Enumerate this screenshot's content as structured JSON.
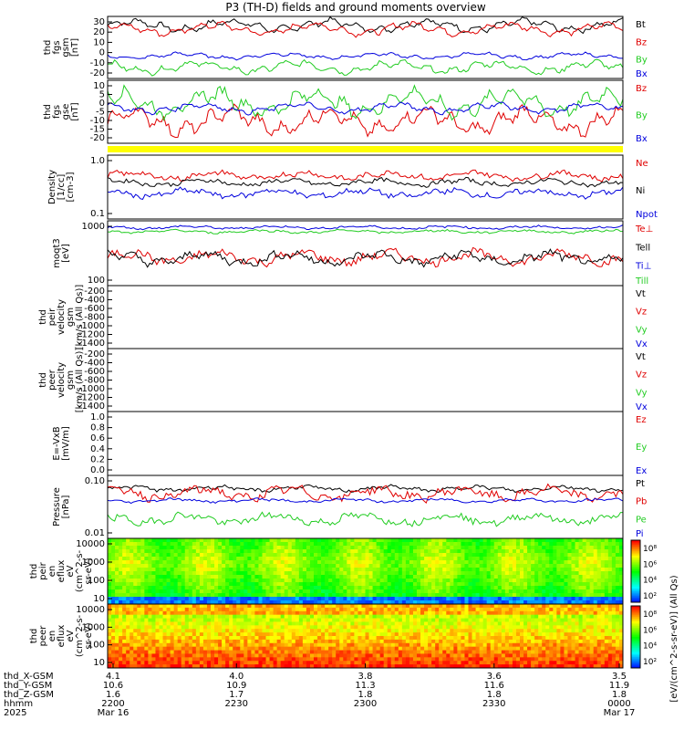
{
  "title": "P3 (TH-D) fields and ground moments overview",
  "colors": {
    "black": "#000000",
    "red": "#e00000",
    "green": "#22cc22",
    "blue": "#0000dd",
    "yellow": "#ffff00"
  },
  "chart_data": [
    {
      "type": "line",
      "id": "fgs_gsm",
      "ylabel": [
        "thd",
        "fgs",
        "gsm",
        "[nT]"
      ],
      "ylim": [
        -20,
        35
      ],
      "yticks": [
        "30",
        "20",
        "10",
        "0",
        "-10",
        "-20"
      ],
      "series": [
        {
          "name": "Bt",
          "color": "black",
          "base": 27,
          "amp": 6
        },
        {
          "name": "Bz",
          "color": "red",
          "base": 24,
          "amp": 6
        },
        {
          "name": "By",
          "color": "green",
          "base": -10,
          "amp": 6
        },
        {
          "name": "Bx",
          "color": "blue",
          "base": 0,
          "amp": 3
        }
      ]
    },
    {
      "type": "line",
      "id": "fgs_gse",
      "ylabel": [
        "thd",
        "fgs",
        "gse",
        "[nT]"
      ],
      "ylim": [
        -22,
        12
      ],
      "yticks": [
        "10",
        "5",
        "0",
        "-5",
        "-10",
        "-15",
        "-20"
      ],
      "series": [
        {
          "name": "Bz",
          "color": "red",
          "base": -10,
          "amp": 8
        },
        {
          "name": "By",
          "color": "green",
          "base": 0,
          "amp": 8
        },
        {
          "name": "Bx",
          "color": "blue",
          "base": -3,
          "amp": 3
        }
      ]
    },
    {
      "type": "line",
      "id": "density",
      "ylabel": [
        "Density",
        "[1/cc]",
        "[cm-3]"
      ],
      "log": true,
      "ylim": [
        0.02,
        3
      ],
      "yticks": [
        "1.0",
        "0.1"
      ],
      "series": [
        {
          "name": "Ne",
          "color": "red",
          "base": 0.6,
          "amp": 0.25
        },
        {
          "name": "Ni",
          "color": "black",
          "base": 0.35,
          "amp": 0.2
        },
        {
          "name": "Npot",
          "color": "blue",
          "base": 0.15,
          "amp": 0.25
        }
      ]
    },
    {
      "type": "line",
      "id": "temps",
      "ylabel": [
        "moqt3",
        "[eV]"
      ],
      "log": true,
      "ylim": [
        30,
        6000
      ],
      "yticks": [
        "1000",
        "100"
      ],
      "series": [
        {
          "name": "Te⊥",
          "color": "red",
          "base": 300,
          "amp": 0.4
        },
        {
          "name": "Tell",
          "color": "black",
          "base": 280,
          "amp": 0.4
        },
        {
          "name": "Ti⊥",
          "color": "blue",
          "base": 3500,
          "amp": 0.1
        },
        {
          "name": "Till",
          "color": "green",
          "base": 2500,
          "amp": 0.1
        }
      ]
    },
    {
      "type": "line",
      "id": "peir_vel",
      "ylabel": [
        "thd",
        "peir",
        "velocity",
        "gsm",
        "[km/s (All Qs)]"
      ],
      "ylim": [
        -1400,
        0
      ],
      "yticks": [
        "-200",
        "-400",
        "-600",
        "-800",
        "-1000",
        "-1200",
        "-1400"
      ],
      "series": [
        {
          "name": "Vt",
          "color": "black"
        },
        {
          "name": "Vz",
          "color": "red"
        },
        {
          "name": "Vy",
          "color": "green"
        },
        {
          "name": "Vx",
          "color": "blue"
        }
      ]
    },
    {
      "type": "line",
      "id": "peer_vel",
      "ylabel": [
        "thd",
        "peer",
        "velocity",
        "gsm",
        "[km/s (All Qs)]"
      ],
      "ylim": [
        -1400,
        0
      ],
      "yticks": [
        "-200",
        "-400",
        "-600",
        "-800",
        "-1000",
        "-1200",
        "-1400"
      ],
      "series": [
        {
          "name": "Vt",
          "color": "black"
        },
        {
          "name": "Vz",
          "color": "red"
        },
        {
          "name": "Vy",
          "color": "green"
        },
        {
          "name": "Vx",
          "color": "blue"
        }
      ]
    },
    {
      "type": "line",
      "id": "efield",
      "ylabel": [
        "E=-VxB",
        "[mV/m]"
      ],
      "ylim": [
        0,
        1
      ],
      "yticks": [
        "1.0",
        "0.8",
        "0.6",
        "0.4",
        "0.2",
        "0.0"
      ],
      "series": [
        {
          "name": "Ez",
          "color": "red"
        },
        {
          "name": "Ey",
          "color": "green"
        },
        {
          "name": "Ex",
          "color": "blue"
        }
      ]
    },
    {
      "type": "line",
      "id": "pressure",
      "ylabel": [
        "Pressure",
        "[nPa]"
      ],
      "log": true,
      "ylim": [
        0.01,
        0.9
      ],
      "yticks": [
        "0.10",
        "0.01"
      ],
      "series": [
        {
          "name": "Pt",
          "color": "black",
          "base": 0.35,
          "amp": 0.15
        },
        {
          "name": "Pb",
          "color": "red",
          "base": 0.25,
          "amp": 0.35
        },
        {
          "name": "Pe",
          "color": "green",
          "base": 0.04,
          "amp": 0.3
        },
        {
          "name": "Pi",
          "color": "blue",
          "base": 0.15,
          "amp": 0.1
        }
      ]
    },
    {
      "type": "heatmap",
      "id": "peir_eflux",
      "ylabel": [
        "thd",
        "peir",
        "en",
        "eflux",
        "eV",
        "(cm^2-s-",
        "sr-eV)"
      ],
      "log": true,
      "ylim": [
        5,
        20000
      ],
      "yticks": [
        "10000",
        "1000",
        "100",
        "10"
      ]
    },
    {
      "type": "heatmap",
      "id": "peer_eflux",
      "ylabel": [
        "thd",
        "peer",
        "en",
        "eflux",
        "eV",
        "(cm^2-s-",
        "sr-eV)"
      ],
      "log": true,
      "ylim": [
        5,
        20000
      ],
      "yticks": [
        "10000",
        "1000",
        "100",
        "10"
      ]
    }
  ],
  "colorbar": {
    "label": "[eV/(cm^2-s-sr-eV)] (All Qs)",
    "upper_ticks": [
      "10⁸",
      "10⁶",
      "10⁴",
      "10²"
    ],
    "lower_ticks": [
      "10⁸",
      "10⁶",
      "10⁴",
      "10²"
    ]
  },
  "xaxis": {
    "rows": [
      {
        "label": "thd_X-GSM",
        "values": [
          "4.1",
          "4.0",
          "3.8",
          "3.6",
          "3.5"
        ]
      },
      {
        "label": "thd_Y-GSM",
        "values": [
          "10.6",
          "10.9",
          "11.3",
          "11.6",
          "11.9"
        ]
      },
      {
        "label": "thd_Z-GSM",
        "values": [
          "1.6",
          "1.7",
          "1.8",
          "1.8",
          "1.8"
        ]
      },
      {
        "label": "hhmm",
        "values": [
          "2200",
          "2230",
          "2300",
          "2330",
          "0000"
        ]
      },
      {
        "label": "2025",
        "values": [
          "Mar 16",
          "",
          "",
          "",
          "Mar 17"
        ]
      }
    ]
  }
}
